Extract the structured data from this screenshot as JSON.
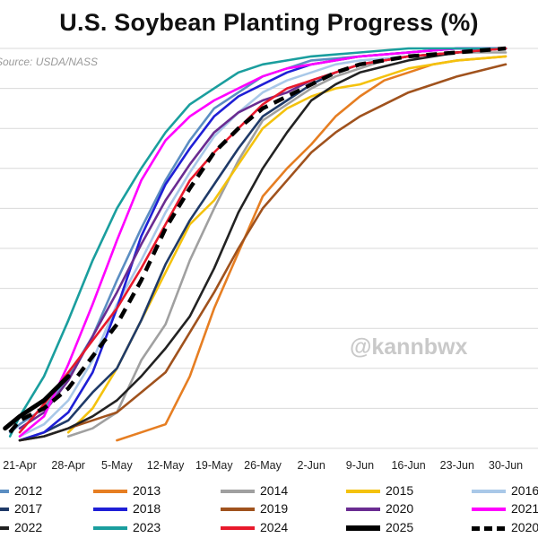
{
  "chart_data": {
    "type": "line",
    "title": "U.S. Soybean Planting Progress (%)",
    "source": "Source: USDA/NASS",
    "watermark": "@kannbwx",
    "x_ticks": [
      "21-Apr",
      "28-Apr",
      "5-May",
      "12-May",
      "19-May",
      "26-May",
      "2-Jun",
      "9-Jun",
      "16-Jun",
      "23-Jun",
      "30-Jun"
    ],
    "xlabel": "",
    "ylabel": "",
    "ylim": [
      0,
      100
    ],
    "grid": "horizontal",
    "series": [
      {
        "name": "2012",
        "color": "#5b8ec2",
        "style": "solid",
        "points": [
          [
            -0.2,
            4
          ],
          [
            0,
            6
          ],
          [
            0.5,
            10
          ],
          [
            1,
            18
          ],
          [
            1.5,
            28
          ],
          [
            2,
            42
          ],
          [
            2.5,
            55
          ],
          [
            3,
            67
          ],
          [
            3.5,
            77
          ],
          [
            4,
            85
          ],
          [
            4.5,
            89
          ],
          [
            5,
            93
          ],
          [
            5.5,
            95
          ],
          [
            6,
            97
          ],
          [
            7,
            98
          ],
          [
            8,
            99
          ],
          [
            9,
            100
          ],
          [
            10,
            100
          ]
        ]
      },
      {
        "name": "2013",
        "color": "#e67e22",
        "style": "solid",
        "points": [
          [
            2,
            2
          ],
          [
            2.5,
            4
          ],
          [
            3,
            6
          ],
          [
            3.5,
            18
          ],
          [
            4,
            35
          ],
          [
            4.5,
            49
          ],
          [
            5,
            63
          ],
          [
            5.5,
            70
          ],
          [
            6,
            76
          ],
          [
            6.5,
            83
          ],
          [
            7,
            88
          ],
          [
            7.5,
            92
          ],
          [
            8,
            94
          ],
          [
            8.5,
            96
          ],
          [
            9,
            97
          ],
          [
            10,
            98
          ]
        ]
      },
      {
        "name": "2014",
        "color": "#a0a0a0",
        "style": "solid",
        "points": [
          [
            1,
            3
          ],
          [
            1.5,
            5
          ],
          [
            2,
            9
          ],
          [
            2.5,
            22
          ],
          [
            3,
            31
          ],
          [
            3.5,
            47
          ],
          [
            4,
            60
          ],
          [
            4.5,
            72
          ],
          [
            5,
            82
          ],
          [
            5.5,
            86
          ],
          [
            6,
            90
          ],
          [
            6.5,
            93
          ],
          [
            7,
            95
          ],
          [
            7.5,
            97
          ],
          [
            8,
            98
          ],
          [
            9,
            99
          ],
          [
            10,
            99
          ]
        ]
      },
      {
        "name": "2015",
        "color": "#f4c20d",
        "style": "solid",
        "points": [
          [
            1,
            4
          ],
          [
            1.5,
            10
          ],
          [
            2,
            20
          ],
          [
            2.5,
            32
          ],
          [
            3,
            44
          ],
          [
            3.5,
            56
          ],
          [
            4,
            62
          ],
          [
            4.5,
            71
          ],
          [
            5,
            80
          ],
          [
            5.5,
            85
          ],
          [
            6,
            88
          ],
          [
            6.5,
            90
          ],
          [
            7,
            91
          ],
          [
            7.5,
            93
          ],
          [
            8,
            95
          ],
          [
            9,
            97
          ],
          [
            10,
            98
          ]
        ]
      },
      {
        "name": "2016",
        "color": "#a9c8e8",
        "style": "solid",
        "points": [
          [
            0,
            3
          ],
          [
            0.5,
            6
          ],
          [
            1,
            12
          ],
          [
            1.5,
            22
          ],
          [
            2,
            36
          ],
          [
            2.5,
            47
          ],
          [
            3,
            59
          ],
          [
            3.5,
            69
          ],
          [
            4,
            78
          ],
          [
            4.5,
            84
          ],
          [
            5,
            89
          ],
          [
            5.5,
            92
          ],
          [
            6,
            94
          ],
          [
            6.5,
            96
          ],
          [
            7,
            97
          ],
          [
            8,
            98
          ],
          [
            9,
            99
          ],
          [
            10,
            100
          ]
        ]
      },
      {
        "name": "2017",
        "color": "#1f3a68",
        "style": "solid",
        "points": [
          [
            0,
            2
          ],
          [
            0.5,
            4
          ],
          [
            1,
            7
          ],
          [
            1.5,
            14
          ],
          [
            2,
            20
          ],
          [
            2.5,
            32
          ],
          [
            3,
            46
          ],
          [
            3.5,
            57
          ],
          [
            4,
            66
          ],
          [
            4.5,
            75
          ],
          [
            5,
            83
          ],
          [
            5.5,
            87
          ],
          [
            6,
            91
          ],
          [
            6.5,
            94
          ],
          [
            7,
            96
          ],
          [
            8,
            98
          ],
          [
            9,
            99
          ],
          [
            10,
            100
          ]
        ]
      },
      {
        "name": "2018",
        "color": "#1f1fd6",
        "style": "solid",
        "points": [
          [
            0,
            2
          ],
          [
            0.5,
            4
          ],
          [
            1,
            9
          ],
          [
            1.5,
            19
          ],
          [
            2,
            35
          ],
          [
            2.5,
            53
          ],
          [
            3,
            66
          ],
          [
            3.5,
            75
          ],
          [
            4,
            83
          ],
          [
            4.5,
            88
          ],
          [
            5,
            91
          ],
          [
            5.5,
            94
          ],
          [
            6,
            96
          ],
          [
            7,
            98
          ],
          [
            8,
            99
          ],
          [
            9,
            100
          ],
          [
            10,
            100
          ]
        ]
      },
      {
        "name": "2019",
        "color": "#a0521d",
        "style": "solid",
        "points": [
          [
            0,
            2
          ],
          [
            0.5,
            3
          ],
          [
            1,
            5
          ],
          [
            1.5,
            7
          ],
          [
            2,
            9
          ],
          [
            2.5,
            14
          ],
          [
            3,
            19
          ],
          [
            3.5,
            29
          ],
          [
            4,
            39
          ],
          [
            4.5,
            50
          ],
          [
            5,
            60
          ],
          [
            5.5,
            67
          ],
          [
            6,
            74
          ],
          [
            6.5,
            79
          ],
          [
            7,
            83
          ],
          [
            7.5,
            86
          ],
          [
            8,
            89
          ],
          [
            9,
            93
          ],
          [
            10,
            96
          ]
        ]
      },
      {
        "name": "2020",
        "color": "#6a2c91",
        "style": "solid",
        "points": [
          [
            0,
            5
          ],
          [
            0.5,
            9
          ],
          [
            1,
            17
          ],
          [
            1.5,
            28
          ],
          [
            2,
            39
          ],
          [
            2.5,
            51
          ],
          [
            3,
            62
          ],
          [
            3.5,
            71
          ],
          [
            4,
            79
          ],
          [
            4.5,
            84
          ],
          [
            5,
            87
          ],
          [
            5.5,
            89
          ],
          [
            6,
            92
          ],
          [
            6.5,
            94
          ],
          [
            7,
            96
          ],
          [
            8,
            98
          ],
          [
            9,
            99
          ],
          [
            10,
            100
          ]
        ]
      },
      {
        "name": "2021",
        "color": "#ff00ff",
        "style": "solid",
        "points": [
          [
            0,
            3
          ],
          [
            0.5,
            8
          ],
          [
            1,
            21
          ],
          [
            1.5,
            36
          ],
          [
            2,
            52
          ],
          [
            2.5,
            67
          ],
          [
            3,
            77
          ],
          [
            3.5,
            83
          ],
          [
            4,
            87
          ],
          [
            4.5,
            90
          ],
          [
            5,
            93
          ],
          [
            5.5,
            95
          ],
          [
            6,
            96
          ],
          [
            7,
            98
          ],
          [
            8,
            99
          ],
          [
            9,
            100
          ],
          [
            10,
            100
          ]
        ]
      },
      {
        "name": "2022",
        "color": "#222222",
        "style": "solid",
        "points": [
          [
            0,
            2
          ],
          [
            0.5,
            3
          ],
          [
            1,
            5
          ],
          [
            1.5,
            8
          ],
          [
            2,
            12
          ],
          [
            2.5,
            18
          ],
          [
            3,
            25
          ],
          [
            3.5,
            33
          ],
          [
            4,
            45
          ],
          [
            4.5,
            59
          ],
          [
            5,
            70
          ],
          [
            5.5,
            79
          ],
          [
            6,
            87
          ],
          [
            6.5,
            91
          ],
          [
            7,
            94
          ],
          [
            8,
            97
          ],
          [
            9,
            99
          ],
          [
            10,
            100
          ]
        ]
      },
      {
        "name": "2023",
        "color": "#1a9e9e",
        "style": "solid",
        "points": [
          [
            -0.2,
            3
          ],
          [
            0,
            8
          ],
          [
            0.5,
            18
          ],
          [
            1,
            32
          ],
          [
            1.5,
            47
          ],
          [
            2,
            60
          ],
          [
            2.5,
            70
          ],
          [
            3,
            79
          ],
          [
            3.5,
            86
          ],
          [
            4,
            90
          ],
          [
            4.5,
            94
          ],
          [
            5,
            96
          ],
          [
            5.5,
            97
          ],
          [
            6,
            98
          ],
          [
            7,
            99
          ],
          [
            8,
            100
          ],
          [
            9,
            100
          ],
          [
            10,
            100
          ]
        ]
      },
      {
        "name": "2024",
        "color": "#e8192c",
        "style": "solid",
        "points": [
          [
            0,
            4
          ],
          [
            0.5,
            11
          ],
          [
            1,
            19
          ],
          [
            1.5,
            27
          ],
          [
            2,
            35
          ],
          [
            2.5,
            45
          ],
          [
            3,
            56
          ],
          [
            3.5,
            67
          ],
          [
            4,
            74
          ],
          [
            4.5,
            80
          ],
          [
            5,
            86
          ],
          [
            5.5,
            90
          ],
          [
            6,
            92
          ],
          [
            6.5,
            94
          ],
          [
            7,
            96
          ],
          [
            8,
            98
          ],
          [
            9,
            99
          ],
          [
            10,
            100
          ]
        ]
      },
      {
        "name": "2025",
        "color": "#000000",
        "style": "thick",
        "points": [
          [
            -0.3,
            5
          ],
          [
            0,
            8
          ],
          [
            0.5,
            12
          ],
          [
            1,
            18
          ]
        ]
      },
      {
        "name": "2020",
        "color": "#000000",
        "style": "dashed",
        "points": [
          [
            -0.2,
            4
          ],
          [
            0,
            7
          ],
          [
            0.5,
            10
          ],
          [
            1,
            15
          ],
          [
            1.5,
            23
          ],
          [
            2,
            31
          ],
          [
            2.5,
            42
          ],
          [
            3,
            55
          ],
          [
            3.5,
            65
          ],
          [
            4,
            74
          ],
          [
            4.5,
            80
          ],
          [
            5,
            85
          ],
          [
            5.5,
            88
          ],
          [
            6,
            91
          ],
          [
            6.5,
            94
          ],
          [
            7,
            96
          ],
          [
            8,
            98
          ],
          [
            9,
            99
          ],
          [
            10,
            100
          ]
        ]
      }
    ]
  }
}
